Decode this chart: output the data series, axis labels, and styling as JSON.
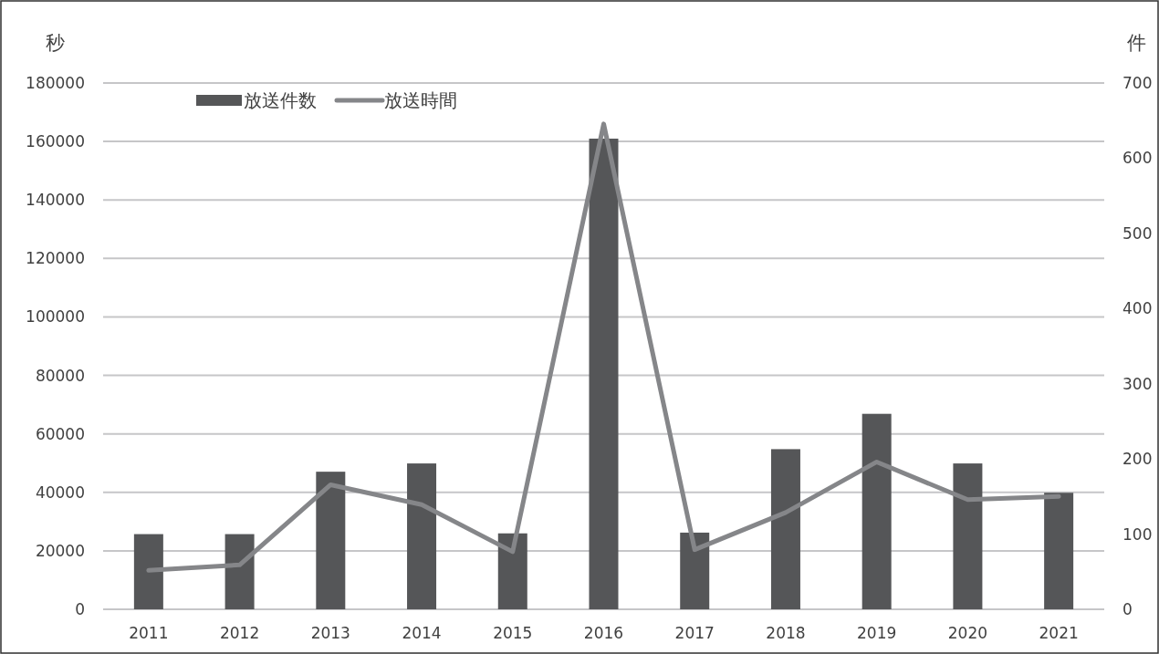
{
  "chart_data": {
    "type": "bar",
    "categories": [
      "2011",
      "2012",
      "2013",
      "2014",
      "2015",
      "2016",
      "2017",
      "2018",
      "2019",
      "2020",
      "2021"
    ],
    "series": [
      {
        "name": "放送件数",
        "axis": "y2",
        "color": "#555658",
        "values": [
          100,
          100,
          183,
          194,
          101,
          626,
          102,
          213,
          260,
          194,
          155
        ]
      },
      {
        "name": "放送時間",
        "type": "line",
        "axis": "y",
        "color": "#858689",
        "values": [
          13300,
          15200,
          42600,
          35800,
          19700,
          166000,
          20400,
          33100,
          50400,
          37500,
          38600
        ]
      }
    ],
    "ylabel": "秒",
    "y2label": "件",
    "ylim": [
      0,
      180000
    ],
    "yticks": [
      0,
      20000,
      40000,
      60000,
      80000,
      100000,
      120000,
      140000,
      160000,
      180000
    ],
    "y2lim": [
      0,
      700
    ],
    "y2ticks": [
      0,
      100,
      200,
      300,
      400,
      500,
      600,
      700
    ],
    "grid": "y",
    "legend": "top left"
  }
}
